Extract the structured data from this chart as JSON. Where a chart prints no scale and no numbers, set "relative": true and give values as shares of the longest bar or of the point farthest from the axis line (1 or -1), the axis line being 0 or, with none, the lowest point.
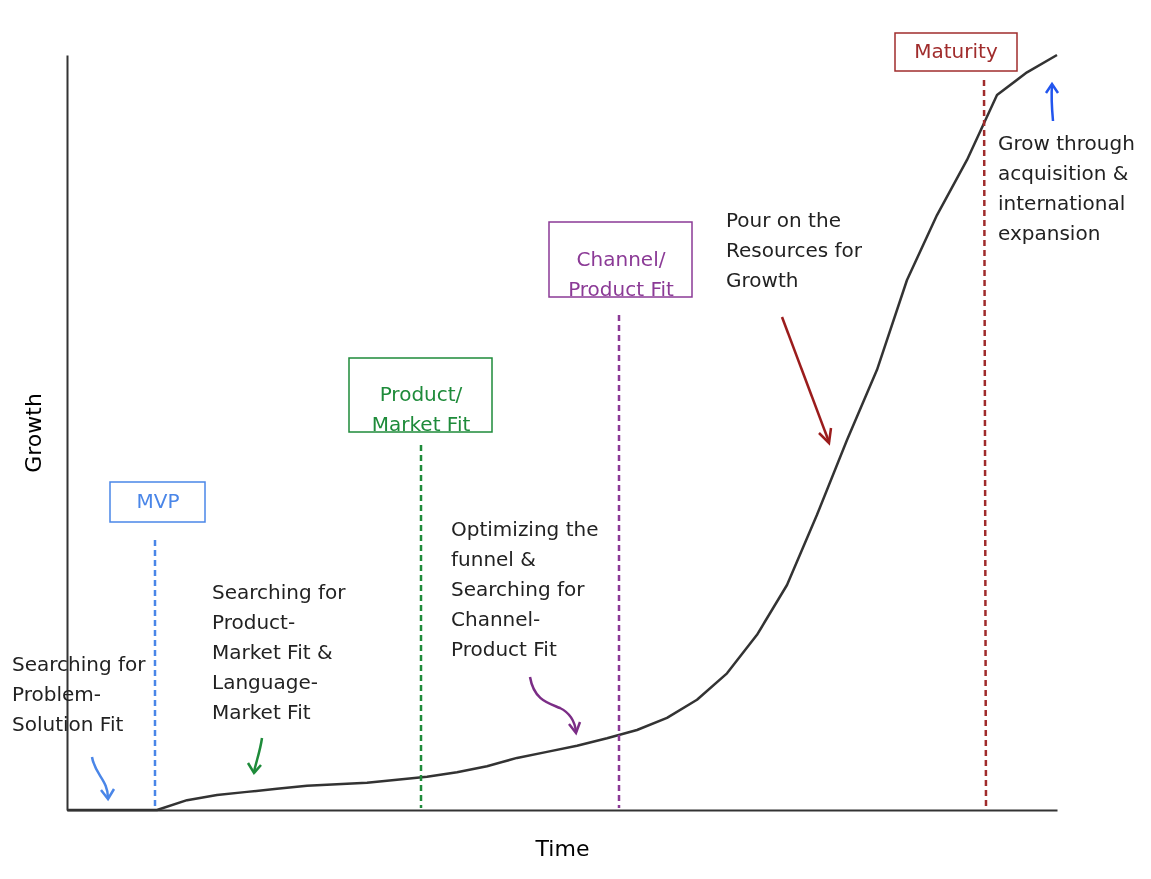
{
  "chart_data": {
    "type": "line",
    "relative": true,
    "xlabel": "Time",
    "ylabel": "Growth",
    "categories": [
      null,
      null,
      null,
      null,
      null,
      null,
      null,
      null,
      null,
      null,
      null,
      null,
      null,
      null,
      null,
      null,
      null,
      null,
      null,
      null,
      null,
      null,
      null,
      null,
      null,
      null,
      null,
      null,
      null,
      null,
      null,
      null,
      null,
      null
    ],
    "series": [
      {
        "color": "#333333",
        "values": [
          0,
          0,
          0,
          0,
          0.013,
          0.02,
          0.024,
          0.028,
          0.032,
          0.034,
          0.036,
          0.04,
          0.044,
          0.05,
          0.058,
          0.069,
          0.077,
          0.085,
          0.095,
          0.106,
          0.122,
          0.146,
          0.181,
          0.232,
          0.298,
          0.391,
          0.49,
          0.583,
          0.702,
          0.788,
          0.861,
          0.947,
          0.977,
          1
        ]
      }
    ],
    "annotations": [
      "MVP",
      "Product/\nMarket Fit",
      "Channel/\nProduct Fit",
      "Maturity",
      "Searching for\nProblem-\nSolution Fit",
      "Searching for\nProduct-\nMarket Fit &\nLanguage-\nMarket Fit",
      "Optimizing the\nfunnel &\nSearching for\nChannel-\nProduct Fit",
      "Pour on the\nResources for\nGrowth",
      "Grow through\nacquisition &\ninternational\nexpansion"
    ],
    "grid": false,
    "marker": "none",
    "line_style": "solid"
  }
}
